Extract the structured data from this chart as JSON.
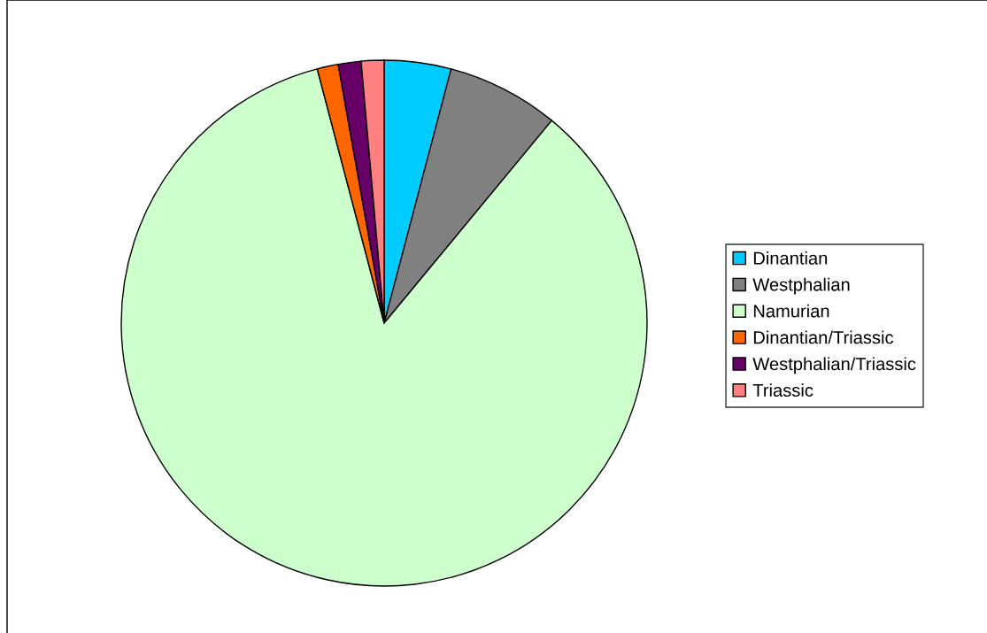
{
  "chart_data": {
    "type": "pie",
    "categories": [
      "Dinantian",
      "Westphalian",
      "Namurian",
      "Dinantian/Triassic",
      "Westphalian/Triassic",
      "Triassic"
    ],
    "values": [
      4.1,
      6.9,
      84.9,
      1.3,
      1.4,
      1.4
    ],
    "colors": [
      "#00ccff",
      "#808080",
      "#ccffcc",
      "#ff6600",
      "#660066",
      "#ff8080"
    ],
    "legend": "right"
  }
}
